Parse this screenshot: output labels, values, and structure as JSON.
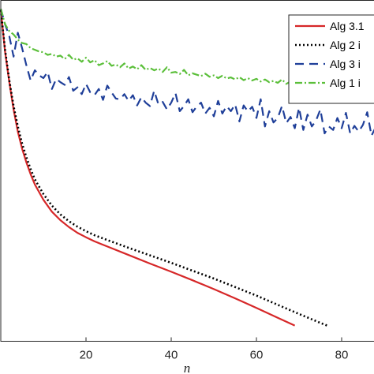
{
  "chart_data": {
    "type": "line",
    "title": "",
    "xlabel": "n",
    "ylabel": "",
    "xlim": [
      0,
      90
    ],
    "x_ticks": [
      20,
      40,
      60,
      80
    ],
    "ylim": [
      0,
      1
    ],
    "legend_position": "top-right",
    "grid": false,
    "series": [
      {
        "name": "Alg 3.1",
        "color": "#d62728",
        "style": "solid",
        "x": [
          0,
          1,
          2,
          3,
          4,
          5,
          6,
          7,
          8,
          10,
          12,
          14,
          16,
          18,
          20,
          22,
          25,
          30,
          35,
          40,
          45,
          50,
          55,
          60,
          65,
          69
        ],
        "y": [
          0.972,
          0.85,
          0.76,
          0.68,
          0.615,
          0.565,
          0.525,
          0.49,
          0.46,
          0.415,
          0.38,
          0.355,
          0.335,
          0.318,
          0.305,
          0.293,
          0.278,
          0.253,
          0.228,
          0.204,
          0.179,
          0.153,
          0.126,
          0.098,
          0.069,
          0.046
        ]
      },
      {
        "name": "Alg 2 i",
        "color": "#000000",
        "style": "dotted",
        "x": [
          0,
          1,
          2,
          3,
          4,
          5,
          6,
          7,
          8,
          10,
          12,
          14,
          16,
          18,
          20,
          22,
          25,
          30,
          35,
          40,
          45,
          50,
          55,
          60,
          65,
          70,
          75,
          77
        ],
        "y": [
          0.972,
          0.855,
          0.765,
          0.69,
          0.63,
          0.58,
          0.54,
          0.505,
          0.475,
          0.432,
          0.398,
          0.372,
          0.352,
          0.336,
          0.323,
          0.311,
          0.297,
          0.274,
          0.252,
          0.23,
          0.207,
          0.184,
          0.159,
          0.134,
          0.107,
          0.08,
          0.054,
          0.044
        ]
      },
      {
        "name": "Alg 3 i",
        "color": "#1f3f99",
        "style": "dashed",
        "x": [
          0,
          1,
          2,
          3,
          4,
          5,
          6,
          7,
          8,
          9,
          10,
          11,
          12,
          13,
          14,
          15,
          16,
          17,
          18,
          19,
          20,
          21,
          22,
          23,
          24,
          25,
          26,
          27,
          28,
          29,
          30,
          31,
          32,
          33,
          34,
          35,
          36,
          37,
          38,
          39,
          40,
          41,
          42,
          43,
          44,
          45,
          46,
          47,
          48,
          49,
          50,
          51,
          52,
          53,
          54,
          55,
          56,
          57,
          58,
          59,
          60,
          61,
          62,
          63,
          64,
          65,
          66,
          67,
          68,
          69,
          70,
          71,
          72,
          73,
          74,
          75,
          76,
          77,
          78,
          79,
          80,
          81,
          82,
          83,
          84,
          85,
          86,
          87,
          88,
          89,
          90
        ],
        "y": [
          0.975,
          0.93,
          0.895,
          0.835,
          0.905,
          0.86,
          0.81,
          0.765,
          0.795,
          0.78,
          0.772,
          0.79,
          0.74,
          0.77,
          0.76,
          0.752,
          0.775,
          0.735,
          0.745,
          0.725,
          0.755,
          0.73,
          0.722,
          0.74,
          0.708,
          0.75,
          0.73,
          0.712,
          0.71,
          0.725,
          0.705,
          0.722,
          0.692,
          0.716,
          0.7,
          0.69,
          0.735,
          0.695,
          0.702,
          0.68,
          0.7,
          0.728,
          0.675,
          0.69,
          0.71,
          0.672,
          0.689,
          0.7,
          0.668,
          0.685,
          0.66,
          0.705,
          0.668,
          0.69,
          0.675,
          0.695,
          0.645,
          0.692,
          0.674,
          0.688,
          0.655,
          0.71,
          0.63,
          0.675,
          0.642,
          0.655,
          0.69,
          0.64,
          0.658,
          0.625,
          0.685,
          0.62,
          0.665,
          0.63,
          0.648,
          0.68,
          0.61,
          0.63,
          0.62,
          0.655,
          0.625,
          0.67,
          0.61,
          0.632,
          0.615,
          0.635,
          0.672,
          0.603,
          0.628,
          0.64,
          0.61
        ]
      },
      {
        "name": "Alg 1 i",
        "color": "#5bbf3a",
        "style": "dashdot",
        "x": [
          0,
          1,
          2,
          3,
          4,
          5,
          6,
          7,
          8,
          9,
          10,
          11,
          12,
          13,
          14,
          15,
          16,
          17,
          18,
          19,
          20,
          21,
          22,
          23,
          24,
          25,
          26,
          27,
          28,
          29,
          30,
          31,
          32,
          33,
          34,
          35,
          36,
          37,
          38,
          39,
          40,
          41,
          42,
          43,
          44,
          45,
          46,
          47,
          48,
          49,
          50,
          51,
          52,
          53,
          54,
          55,
          56,
          57,
          58,
          59,
          60,
          61,
          62,
          63,
          64,
          65,
          66,
          67,
          68,
          69,
          70,
          71,
          72,
          73,
          74,
          75,
          76,
          77,
          78,
          79,
          80,
          81,
          82,
          83,
          84,
          85,
          86,
          87,
          88,
          89,
          90
        ],
        "y": [
          0.975,
          0.93,
          0.91,
          0.9,
          0.885,
          0.875,
          0.872,
          0.86,
          0.855,
          0.85,
          0.848,
          0.84,
          0.843,
          0.835,
          0.838,
          0.828,
          0.84,
          0.826,
          0.83,
          0.82,
          0.832,
          0.818,
          0.825,
          0.81,
          0.815,
          0.822,
          0.808,
          0.812,
          0.804,
          0.815,
          0.8,
          0.806,
          0.798,
          0.81,
          0.796,
          0.802,
          0.795,
          0.8,
          0.79,
          0.804,
          0.788,
          0.79,
          0.784,
          0.796,
          0.78,
          0.786,
          0.782,
          0.778,
          0.785,
          0.776,
          0.78,
          0.772,
          0.779,
          0.771,
          0.774,
          0.768,
          0.775,
          0.766,
          0.772,
          0.765,
          0.77,
          0.762,
          0.768,
          0.76,
          0.764,
          0.758,
          0.768,
          0.755,
          0.762,
          0.756,
          0.76,
          0.752,
          0.758,
          0.75,
          0.757,
          0.748,
          0.755,
          0.746,
          0.76,
          0.744,
          0.752,
          0.742,
          0.755,
          0.74,
          0.748,
          0.75,
          0.738,
          0.752,
          0.74,
          0.745,
          0.742
        ]
      }
    ]
  }
}
